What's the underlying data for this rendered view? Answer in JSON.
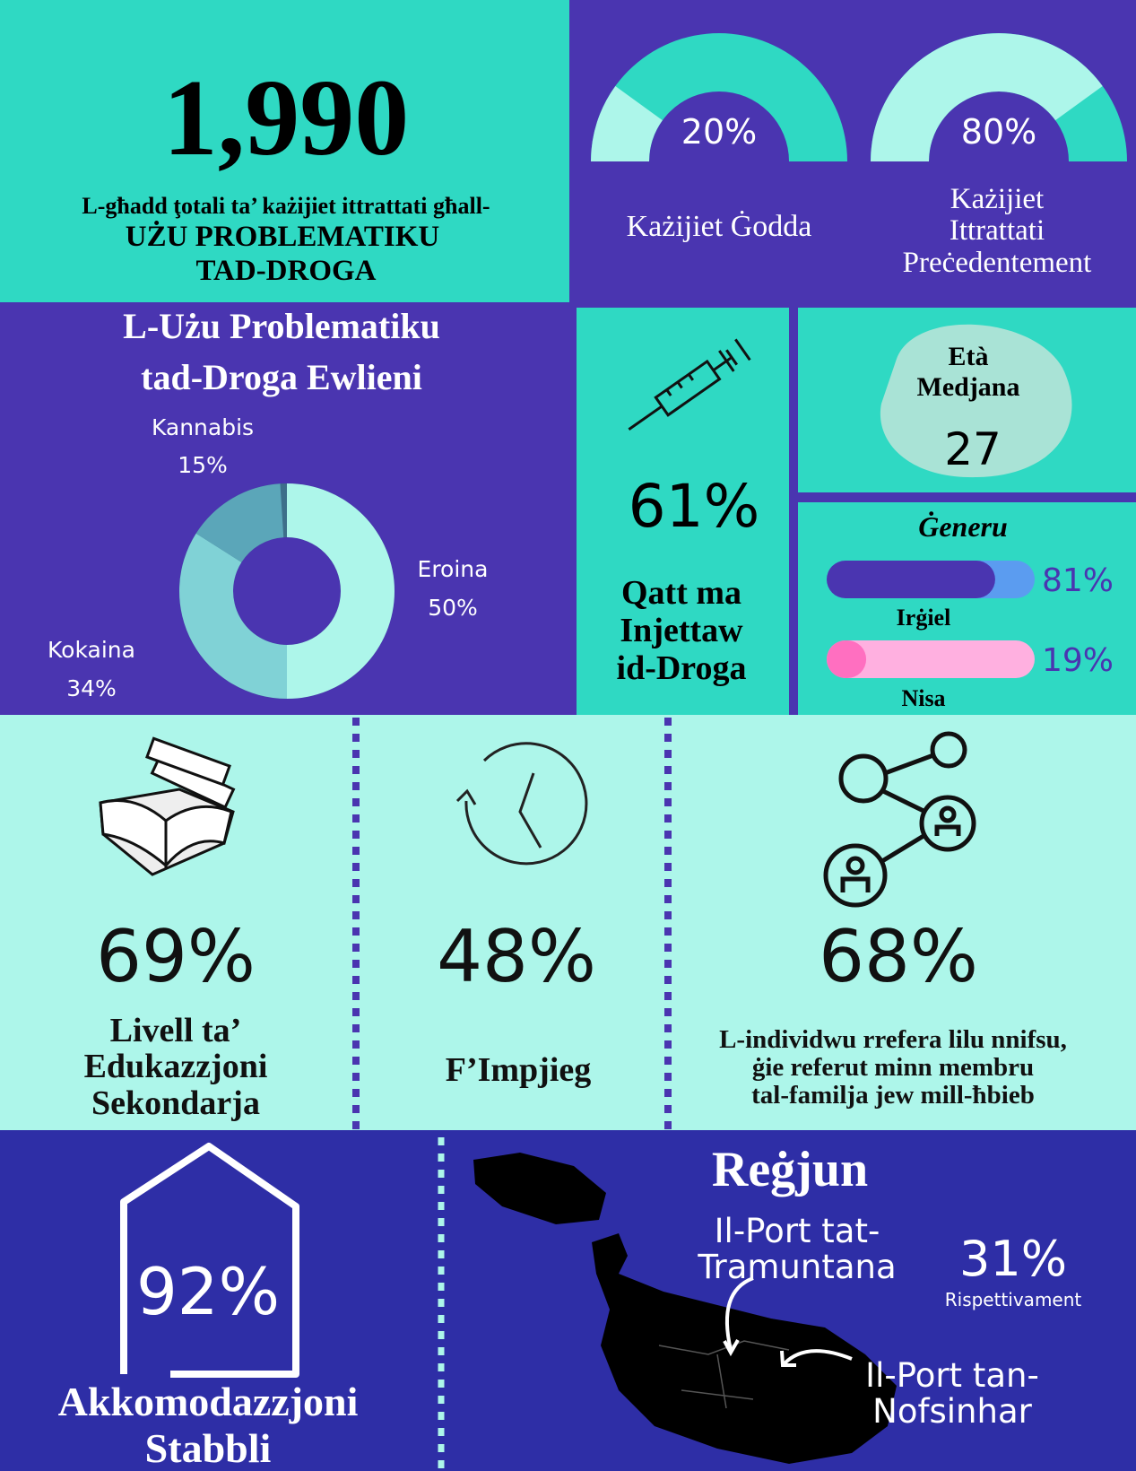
{
  "total": {
    "value": "1,990",
    "caption_lines": [
      "L-għadd ţotali ta’ każijiet ittrattati għall-",
      "UŻU PROBLEMATIKU",
      "TAD-DROGA"
    ]
  },
  "gauges": [
    {
      "value": 20,
      "label": "20%",
      "caption_lines": [
        "Każijiet Ġodda"
      ]
    },
    {
      "value": 80,
      "label": "80%",
      "caption_lines": [
        "Każijiet",
        "Ittrattati",
        "Preċedentement"
      ]
    }
  ],
  "drugs": {
    "title_lines": [
      "L-Użu Problematiku",
      "tad-Droga Ewlieni"
    ],
    "segments": [
      {
        "name": "Eroina",
        "value": 50,
        "label": "50%",
        "color": "#adf6ea"
      },
      {
        "name": "Kokaina",
        "value": 34,
        "label": "34%",
        "color": "#80d2d6"
      },
      {
        "name": "Kannabis",
        "value": 15,
        "label": "15%",
        "color": "#5ba6b9"
      }
    ]
  },
  "injection": {
    "label": "61%",
    "caption_lines": [
      "Qatt ma",
      "Injettaw",
      "id-Droga"
    ]
  },
  "median_age": {
    "title_lines": [
      "Età",
      "Medjana"
    ],
    "value": "27"
  },
  "gender": {
    "title": "Ġeneru",
    "rows": [
      {
        "name": "Irġiel",
        "value": 81,
        "label": "81%",
        "color": "#4a35b0",
        "track": "#5b9cf0"
      },
      {
        "name": "Nisa",
        "value": 19,
        "label": "19%",
        "color": "#ff6fc0",
        "track": "#ffb0e0"
      }
    ]
  },
  "stats": [
    {
      "label": "69%",
      "caption_lines": [
        "Livell ta’",
        "Edukazzjoni",
        "Sekondarja"
      ]
    },
    {
      "label": "48%",
      "caption_lines": [
        "F’Impjieg"
      ]
    },
    {
      "label": "68%",
      "caption_lines": [
        "L-individwu rrefera lilu nnifsu,",
        "ġie referut minn membru",
        "tal-familja jew mill-ħbieb"
      ]
    }
  ],
  "housing": {
    "label": "92%",
    "caption_lines": [
      "Akkomodazzjoni",
      "Stabbli"
    ]
  },
  "region": {
    "title": "Reġjun",
    "north_lines": [
      "Il-Port tat-",
      "Tramuntana"
    ],
    "value": "31%",
    "note": "Rispettivament",
    "south_lines": [
      "Il-Port tan-",
      "Nofsinhar"
    ]
  }
}
